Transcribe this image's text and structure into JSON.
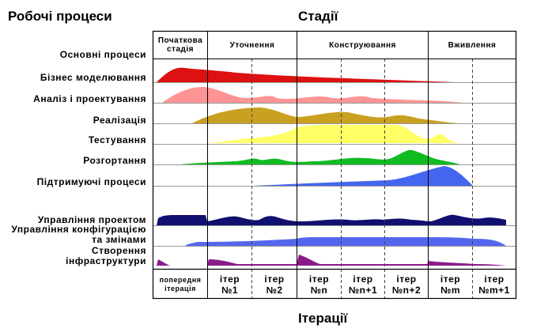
{
  "headings": {
    "workflows": "Робочі процеси",
    "phases": "Стадії",
    "iterations": "Ітерації"
  },
  "phases": [
    {
      "label": "Початкова стадія"
    },
    {
      "label": "Уточнення"
    },
    {
      "label": "Конструювання"
    },
    {
      "label": "Вживлення"
    }
  ],
  "workflow_group_core": "Основні процеси",
  "workflows": [
    {
      "label": "Бізнес моделювання",
      "color": "#dd1111"
    },
    {
      "label": "Аналіз і проектування",
      "color": "#ff9090"
    },
    {
      "label": "Реалізація",
      "color": "#c9a020"
    },
    {
      "label": "Тестування",
      "color": "#ffff66"
    },
    {
      "label": "Розгортання",
      "color": "#11bb22"
    },
    {
      "label": "Підтримуючі процеси",
      "color": "#4466ee"
    },
    {
      "label": "Управління проектом",
      "color": "#101070"
    },
    {
      "label": "Управління конфігурацією та змінами",
      "line1": "Управління конфігурацією",
      "line2": "та змінами",
      "color": "#5566ee"
    },
    {
      "label": "Створення інфраструктури",
      "line1": "Створення",
      "line2": "інфраструктури",
      "color": "#8a1a8a"
    }
  ],
  "iterations": [
    {
      "line1": "попередня",
      "line2": "ітерація"
    },
    {
      "line1": "ітер",
      "line2": "№1"
    },
    {
      "line1": "ітер",
      "line2": "№2"
    },
    {
      "line1": "ітер",
      "line2": "№n"
    },
    {
      "line1": "ітер",
      "line2": "№n+1"
    },
    {
      "line1": "ітер",
      "line2": "№n+2"
    },
    {
      "line1": "ітер",
      "line2": "№m"
    },
    {
      "line1": "ітер",
      "line2": "№m+1"
    }
  ]
}
